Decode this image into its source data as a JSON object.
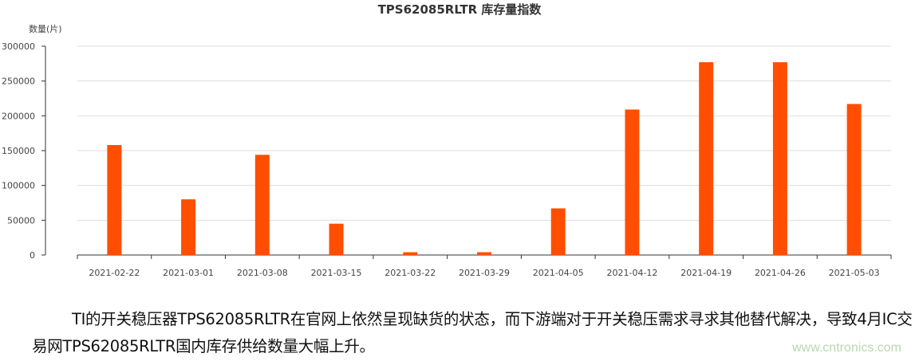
{
  "chart_data": {
    "type": "bar",
    "title": "TPS62085RLTR 库存量指数",
    "ylabel": "数量(片)",
    "xlabel": "",
    "ylim": [
      0,
      300000
    ],
    "yticks": [
      "0",
      "50000",
      "100000",
      "150000",
      "200000",
      "250000",
      "300000"
    ],
    "categories": [
      "2021-02-22",
      "2021-03-01",
      "2021-03-08",
      "2021-03-15",
      "2021-03-22",
      "2021-03-29",
      "2021-04-05",
      "2021-04-12",
      "2021-04-19",
      "2021-04-26",
      "2021-05-03"
    ],
    "values": [
      158000,
      80000,
      144000,
      45000,
      4000,
      4000,
      67000,
      209000,
      277000,
      277000,
      217000
    ],
    "bar_color": "#ff4e00",
    "grid": true
  },
  "caption": "TI的开关稳压器TPS62085RLTR在官网上依然呈现缺货的状态，而下游端对于开关稳压需求寻求其他替代解决，导致4月IC交易网TPS62085RLTR国内库存供给数量大幅上升。",
  "watermark": "www.cntronics.com"
}
